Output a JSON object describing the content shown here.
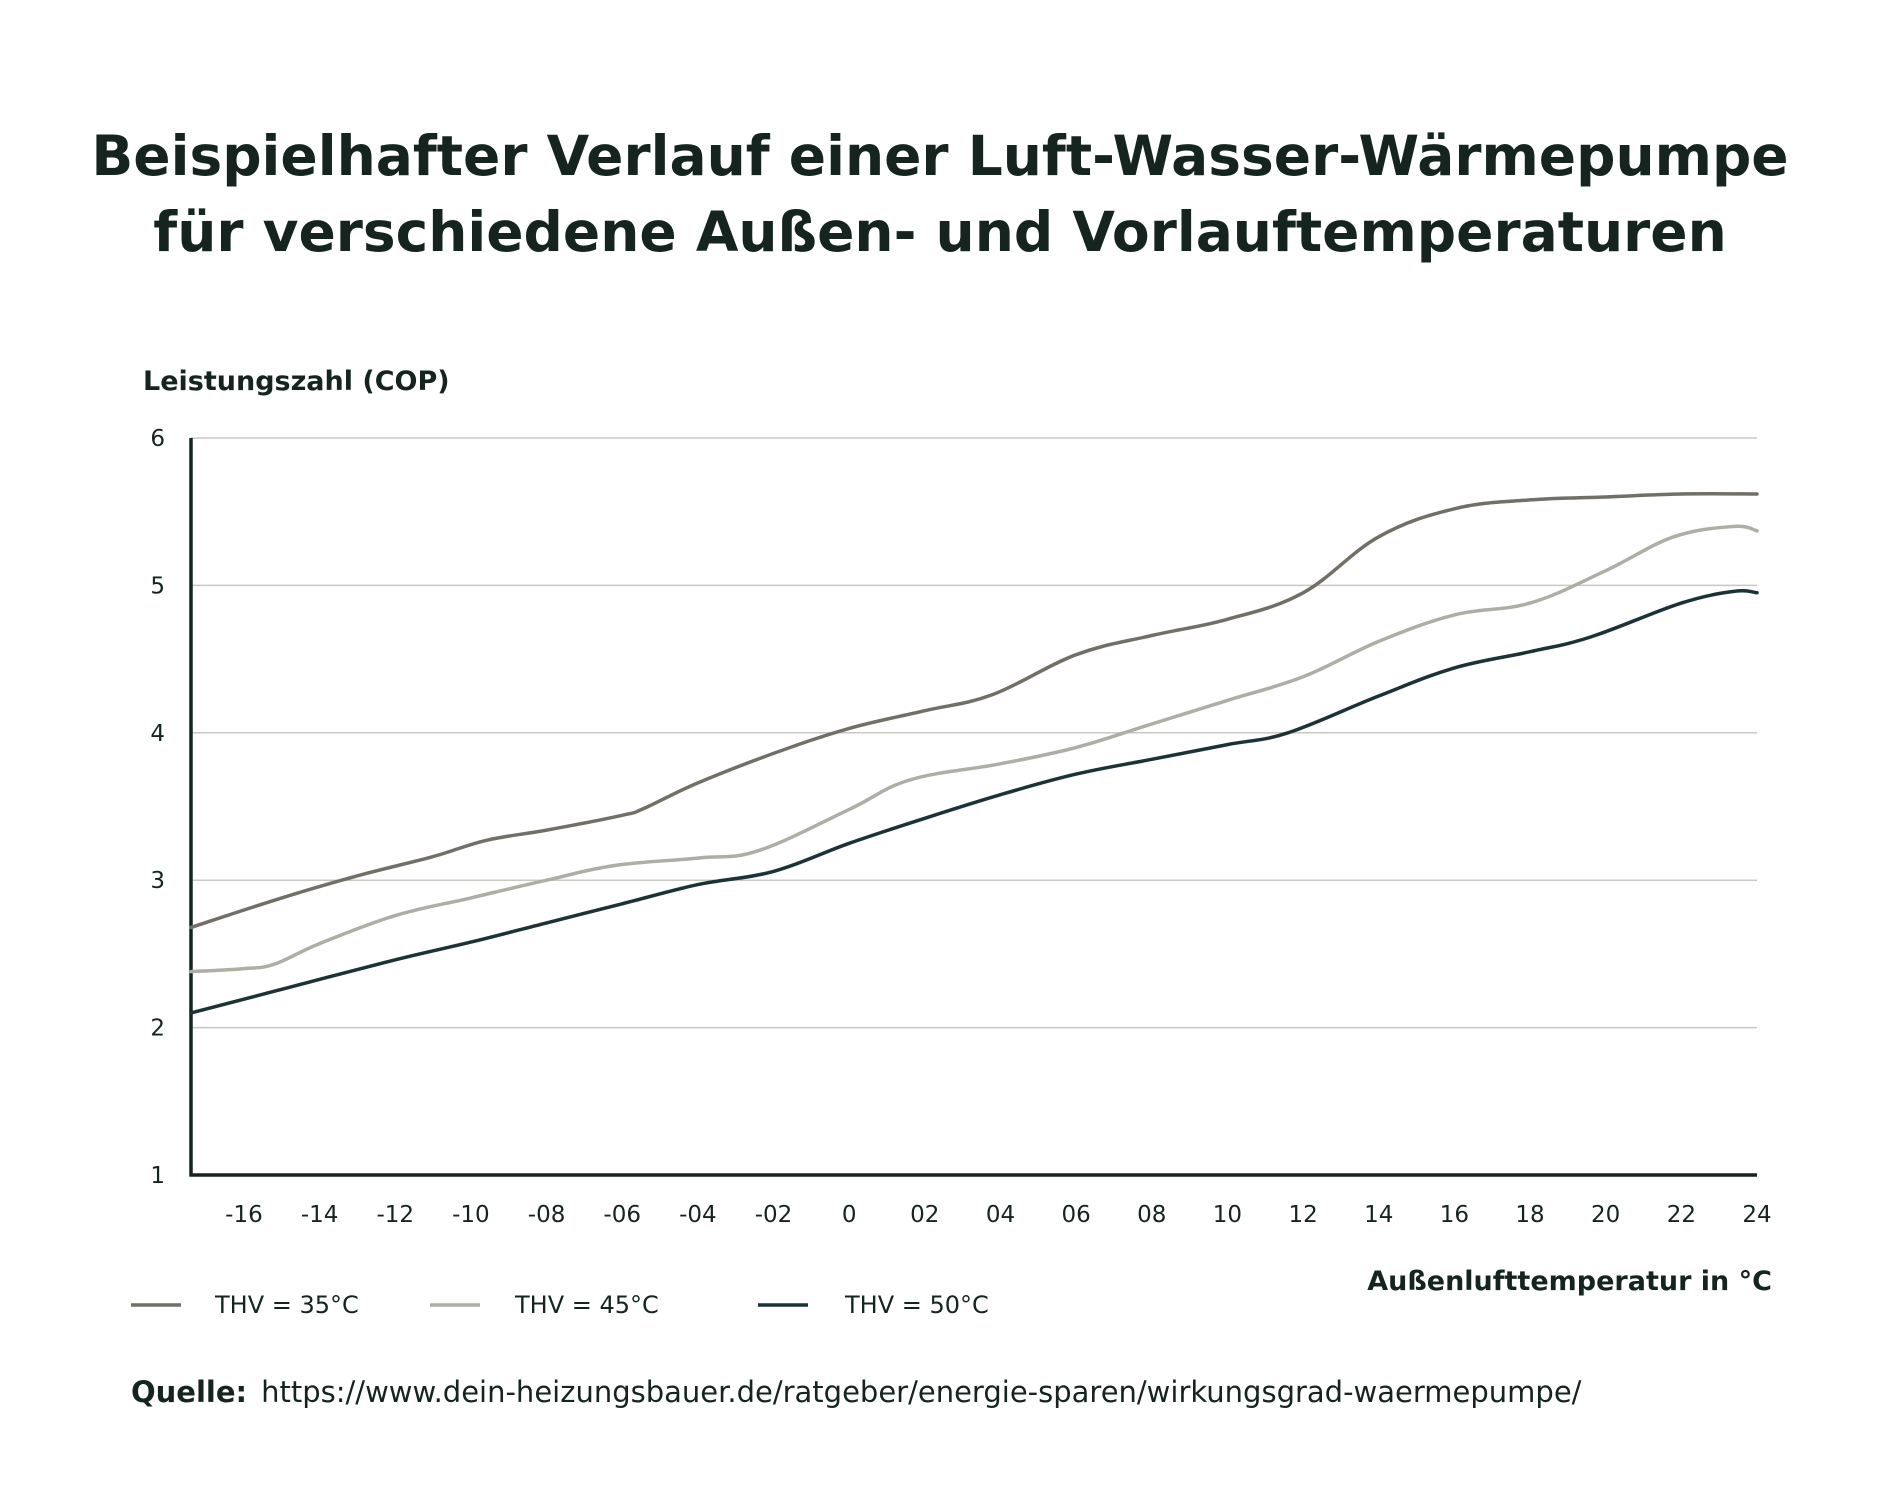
{
  "title": {
    "line1": "Beispielhafter Verlauf einer Luft-Wasser-Wärmepumpe",
    "line2": "für verschiedene Außen- und Vorlauftemperaturen"
  },
  "source": {
    "label": "Quelle:",
    "url": "https://www.dein-heizungsbauer.de/ratgeber/energie-sparen/wirkungsgrad-waermepumpe/"
  },
  "chart_data": {
    "type": "line",
    "ylabel": "Leistungszahl (COP)",
    "xlabel": "Außenlufttemperatur in °C",
    "xlim": [
      -17.4,
      24
    ],
    "ylim": [
      1,
      6
    ],
    "grid": true,
    "legend_position": "bottom-left",
    "x_ticks": [
      -16,
      -14,
      -12,
      -10,
      -8,
      -6,
      -4,
      -2,
      0,
      2,
      4,
      6,
      8,
      10,
      12,
      14,
      16,
      18,
      20,
      22,
      24
    ],
    "x_tick_labels": [
      "-16",
      "-14",
      "-12",
      "-10",
      "-08",
      "-06",
      "-04",
      "-02",
      "0",
      "02",
      "04",
      "06",
      "08",
      "10",
      "12",
      "14",
      "16",
      "18",
      "20",
      "22",
      "24"
    ],
    "y_ticks": [
      1,
      2,
      3,
      4,
      5,
      6
    ],
    "y_tick_labels": [
      "1",
      "2",
      "3",
      "4",
      "5",
      "6"
    ],
    "series": [
      {
        "name": "THV = 35°C",
        "color": "#727066",
        "points": [
          [
            -17.4,
            2.68
          ],
          [
            -15,
            2.88
          ],
          [
            -13,
            3.03
          ],
          [
            -11,
            3.16
          ],
          [
            -9.6,
            3.27
          ],
          [
            -8,
            3.34
          ],
          [
            -6,
            3.44
          ],
          [
            -5.4,
            3.49
          ],
          [
            -4,
            3.66
          ],
          [
            -2,
            3.86
          ],
          [
            0,
            4.03
          ],
          [
            2,
            4.15
          ],
          [
            3.8,
            4.26
          ],
          [
            6,
            4.53
          ],
          [
            8,
            4.66
          ],
          [
            10,
            4.77
          ],
          [
            12,
            4.95
          ],
          [
            14,
            5.33
          ],
          [
            16,
            5.52
          ],
          [
            18,
            5.58
          ],
          [
            20,
            5.6
          ],
          [
            22,
            5.62
          ],
          [
            24,
            5.62
          ]
        ]
      },
      {
        "name": "THV = 45°C",
        "color": "#aeaea5",
        "points": [
          [
            -17.4,
            2.38
          ],
          [
            -16,
            2.4
          ],
          [
            -15.2,
            2.43
          ],
          [
            -14,
            2.57
          ],
          [
            -12,
            2.76
          ],
          [
            -10,
            2.88
          ],
          [
            -8,
            3.0
          ],
          [
            -6.2,
            3.1
          ],
          [
            -4,
            3.15
          ],
          [
            -2.4,
            3.2
          ],
          [
            0,
            3.48
          ],
          [
            1.6,
            3.68
          ],
          [
            4,
            3.79
          ],
          [
            6,
            3.9
          ],
          [
            8,
            4.06
          ],
          [
            10,
            4.22
          ],
          [
            12,
            4.38
          ],
          [
            14,
            4.62
          ],
          [
            16,
            4.8
          ],
          [
            18,
            4.88
          ],
          [
            20,
            5.1
          ],
          [
            21.8,
            5.33
          ],
          [
            23.4,
            5.4
          ],
          [
            24,
            5.37
          ]
        ]
      },
      {
        "name": "THV = 50°C",
        "color": "#1c3236",
        "points": [
          [
            -17.4,
            2.1
          ],
          [
            -15,
            2.26
          ],
          [
            -12,
            2.46
          ],
          [
            -10,
            2.58
          ],
          [
            -8,
            2.71
          ],
          [
            -6,
            2.84
          ],
          [
            -4,
            2.97
          ],
          [
            -2,
            3.06
          ],
          [
            0,
            3.25
          ],
          [
            2,
            3.42
          ],
          [
            4,
            3.58
          ],
          [
            6,
            3.72
          ],
          [
            8,
            3.82
          ],
          [
            10,
            3.92
          ],
          [
            11.6,
            4.0
          ],
          [
            14,
            4.25
          ],
          [
            16,
            4.44
          ],
          [
            18,
            4.55
          ],
          [
            19.6,
            4.65
          ],
          [
            22,
            4.88
          ],
          [
            23.4,
            4.96
          ],
          [
            24,
            4.95
          ]
        ]
      }
    ]
  }
}
